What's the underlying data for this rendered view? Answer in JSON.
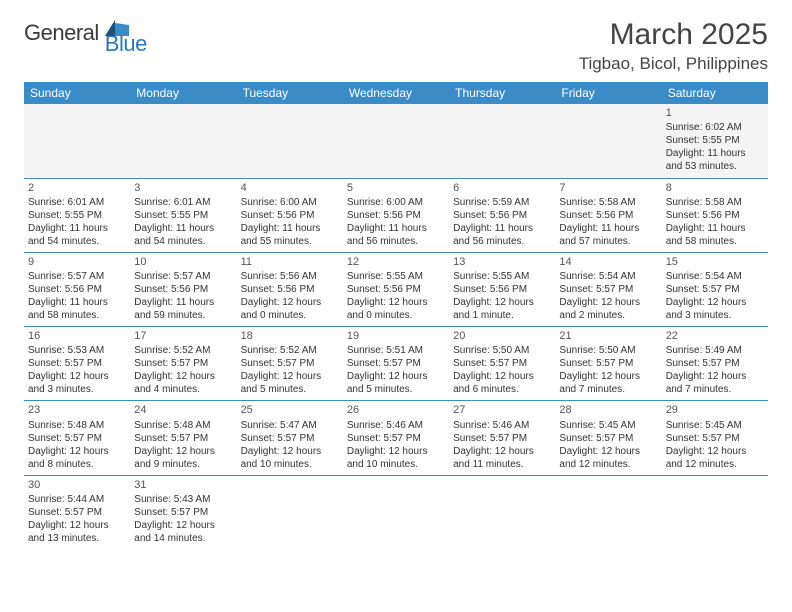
{
  "logo": {
    "general": "General",
    "blue": "Blue"
  },
  "header": {
    "month_title": "March 2025",
    "location": "Tigbao, Bicol, Philippines"
  },
  "colors": {
    "header_bar": "#3b8bc7",
    "row_divider": "#3b8bc7",
    "text": "#333333",
    "muted_bg": "#f4f4f4",
    "logo_blue": "#2e75b6",
    "logo_flag_dark": "#1f4e79"
  },
  "day_headers": [
    "Sunday",
    "Monday",
    "Tuesday",
    "Wednesday",
    "Thursday",
    "Friday",
    "Saturday"
  ],
  "weeks": [
    [
      null,
      null,
      null,
      null,
      null,
      null,
      {
        "d": "1",
        "sr": "Sunrise: 6:02 AM",
        "ss": "Sunset: 5:55 PM",
        "dl1": "Daylight: 11 hours",
        "dl2": "and 53 minutes."
      }
    ],
    [
      {
        "d": "2",
        "sr": "Sunrise: 6:01 AM",
        "ss": "Sunset: 5:55 PM",
        "dl1": "Daylight: 11 hours",
        "dl2": "and 54 minutes."
      },
      {
        "d": "3",
        "sr": "Sunrise: 6:01 AM",
        "ss": "Sunset: 5:55 PM",
        "dl1": "Daylight: 11 hours",
        "dl2": "and 54 minutes."
      },
      {
        "d": "4",
        "sr": "Sunrise: 6:00 AM",
        "ss": "Sunset: 5:56 PM",
        "dl1": "Daylight: 11 hours",
        "dl2": "and 55 minutes."
      },
      {
        "d": "5",
        "sr": "Sunrise: 6:00 AM",
        "ss": "Sunset: 5:56 PM",
        "dl1": "Daylight: 11 hours",
        "dl2": "and 56 minutes."
      },
      {
        "d": "6",
        "sr": "Sunrise: 5:59 AM",
        "ss": "Sunset: 5:56 PM",
        "dl1": "Daylight: 11 hours",
        "dl2": "and 56 minutes."
      },
      {
        "d": "7",
        "sr": "Sunrise: 5:58 AM",
        "ss": "Sunset: 5:56 PM",
        "dl1": "Daylight: 11 hours",
        "dl2": "and 57 minutes."
      },
      {
        "d": "8",
        "sr": "Sunrise: 5:58 AM",
        "ss": "Sunset: 5:56 PM",
        "dl1": "Daylight: 11 hours",
        "dl2": "and 58 minutes."
      }
    ],
    [
      {
        "d": "9",
        "sr": "Sunrise: 5:57 AM",
        "ss": "Sunset: 5:56 PM",
        "dl1": "Daylight: 11 hours",
        "dl2": "and 58 minutes."
      },
      {
        "d": "10",
        "sr": "Sunrise: 5:57 AM",
        "ss": "Sunset: 5:56 PM",
        "dl1": "Daylight: 11 hours",
        "dl2": "and 59 minutes."
      },
      {
        "d": "11",
        "sr": "Sunrise: 5:56 AM",
        "ss": "Sunset: 5:56 PM",
        "dl1": "Daylight: 12 hours",
        "dl2": "and 0 minutes."
      },
      {
        "d": "12",
        "sr": "Sunrise: 5:55 AM",
        "ss": "Sunset: 5:56 PM",
        "dl1": "Daylight: 12 hours",
        "dl2": "and 0 minutes."
      },
      {
        "d": "13",
        "sr": "Sunrise: 5:55 AM",
        "ss": "Sunset: 5:56 PM",
        "dl1": "Daylight: 12 hours",
        "dl2": "and 1 minute."
      },
      {
        "d": "14",
        "sr": "Sunrise: 5:54 AM",
        "ss": "Sunset: 5:57 PM",
        "dl1": "Daylight: 12 hours",
        "dl2": "and 2 minutes."
      },
      {
        "d": "15",
        "sr": "Sunrise: 5:54 AM",
        "ss": "Sunset: 5:57 PM",
        "dl1": "Daylight: 12 hours",
        "dl2": "and 3 minutes."
      }
    ],
    [
      {
        "d": "16",
        "sr": "Sunrise: 5:53 AM",
        "ss": "Sunset: 5:57 PM",
        "dl1": "Daylight: 12 hours",
        "dl2": "and 3 minutes."
      },
      {
        "d": "17",
        "sr": "Sunrise: 5:52 AM",
        "ss": "Sunset: 5:57 PM",
        "dl1": "Daylight: 12 hours",
        "dl2": "and 4 minutes."
      },
      {
        "d": "18",
        "sr": "Sunrise: 5:52 AM",
        "ss": "Sunset: 5:57 PM",
        "dl1": "Daylight: 12 hours",
        "dl2": "and 5 minutes."
      },
      {
        "d": "19",
        "sr": "Sunrise: 5:51 AM",
        "ss": "Sunset: 5:57 PM",
        "dl1": "Daylight: 12 hours",
        "dl2": "and 5 minutes."
      },
      {
        "d": "20",
        "sr": "Sunrise: 5:50 AM",
        "ss": "Sunset: 5:57 PM",
        "dl1": "Daylight: 12 hours",
        "dl2": "and 6 minutes."
      },
      {
        "d": "21",
        "sr": "Sunrise: 5:50 AM",
        "ss": "Sunset: 5:57 PM",
        "dl1": "Daylight: 12 hours",
        "dl2": "and 7 minutes."
      },
      {
        "d": "22",
        "sr": "Sunrise: 5:49 AM",
        "ss": "Sunset: 5:57 PM",
        "dl1": "Daylight: 12 hours",
        "dl2": "and 7 minutes."
      }
    ],
    [
      {
        "d": "23",
        "sr": "Sunrise: 5:48 AM",
        "ss": "Sunset: 5:57 PM",
        "dl1": "Daylight: 12 hours",
        "dl2": "and 8 minutes."
      },
      {
        "d": "24",
        "sr": "Sunrise: 5:48 AM",
        "ss": "Sunset: 5:57 PM",
        "dl1": "Daylight: 12 hours",
        "dl2": "and 9 minutes."
      },
      {
        "d": "25",
        "sr": "Sunrise: 5:47 AM",
        "ss": "Sunset: 5:57 PM",
        "dl1": "Daylight: 12 hours",
        "dl2": "and 10 minutes."
      },
      {
        "d": "26",
        "sr": "Sunrise: 5:46 AM",
        "ss": "Sunset: 5:57 PM",
        "dl1": "Daylight: 12 hours",
        "dl2": "and 10 minutes."
      },
      {
        "d": "27",
        "sr": "Sunrise: 5:46 AM",
        "ss": "Sunset: 5:57 PM",
        "dl1": "Daylight: 12 hours",
        "dl2": "and 11 minutes."
      },
      {
        "d": "28",
        "sr": "Sunrise: 5:45 AM",
        "ss": "Sunset: 5:57 PM",
        "dl1": "Daylight: 12 hours",
        "dl2": "and 12 minutes."
      },
      {
        "d": "29",
        "sr": "Sunrise: 5:45 AM",
        "ss": "Sunset: 5:57 PM",
        "dl1": "Daylight: 12 hours",
        "dl2": "and 12 minutes."
      }
    ],
    [
      {
        "d": "30",
        "sr": "Sunrise: 5:44 AM",
        "ss": "Sunset: 5:57 PM",
        "dl1": "Daylight: 12 hours",
        "dl2": "and 13 minutes."
      },
      {
        "d": "31",
        "sr": "Sunrise: 5:43 AM",
        "ss": "Sunset: 5:57 PM",
        "dl1": "Daylight: 12 hours",
        "dl2": "and 14 minutes."
      },
      null,
      null,
      null,
      null,
      null
    ]
  ]
}
